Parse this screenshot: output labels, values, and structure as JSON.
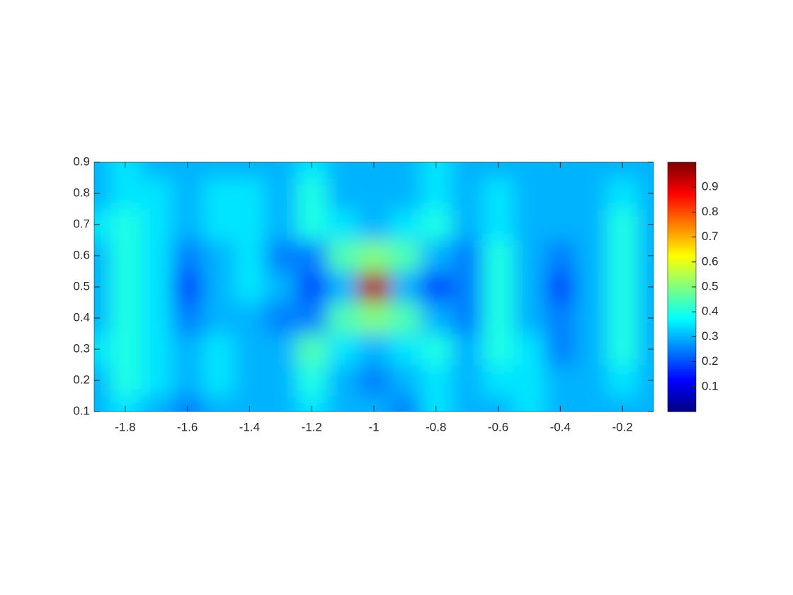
{
  "chart_data": {
    "type": "heatmap",
    "colormap": "jet",
    "x": [
      -1.9,
      -1.8,
      -1.7,
      -1.6,
      -1.5,
      -1.4,
      -1.3,
      -1.2,
      -1.1,
      -1,
      -0.9,
      -0.8,
      -0.7,
      -0.6,
      -0.5,
      -0.4,
      -0.3,
      -0.2,
      -0.1
    ],
    "y": [
      0.1,
      0.2,
      0.3,
      0.4,
      0.5,
      0.6,
      0.7,
      0.8,
      0.9
    ],
    "z": [
      [
        0.3,
        0.35,
        0.3,
        0.25,
        0.3,
        0.3,
        0.3,
        0.35,
        0.3,
        0.3,
        0.25,
        0.35,
        0.3,
        0.3,
        0.35,
        0.3,
        0.3,
        0.3,
        0.3
      ],
      [
        0.3,
        0.4,
        0.35,
        0.3,
        0.35,
        0.3,
        0.3,
        0.4,
        0.3,
        0.25,
        0.3,
        0.35,
        0.3,
        0.35,
        0.35,
        0.3,
        0.3,
        0.35,
        0.3
      ],
      [
        0.35,
        0.4,
        0.35,
        0.3,
        0.35,
        0.3,
        0.3,
        0.45,
        0.35,
        0.3,
        0.35,
        0.4,
        0.3,
        0.4,
        0.35,
        0.25,
        0.3,
        0.4,
        0.3
      ],
      [
        0.3,
        0.4,
        0.35,
        0.25,
        0.3,
        0.3,
        0.25,
        0.25,
        0.45,
        0.5,
        0.45,
        0.3,
        0.25,
        0.4,
        0.3,
        0.25,
        0.3,
        0.4,
        0.3
      ],
      [
        0.3,
        0.4,
        0.35,
        0.2,
        0.3,
        0.35,
        0.3,
        0.2,
        0.3,
        0.95,
        0.3,
        0.2,
        0.25,
        0.4,
        0.3,
        0.2,
        0.3,
        0.4,
        0.3
      ],
      [
        0.3,
        0.4,
        0.35,
        0.25,
        0.3,
        0.35,
        0.25,
        0.25,
        0.45,
        0.5,
        0.45,
        0.3,
        0.25,
        0.4,
        0.3,
        0.25,
        0.3,
        0.4,
        0.3
      ],
      [
        0.35,
        0.4,
        0.35,
        0.3,
        0.35,
        0.35,
        0.3,
        0.4,
        0.35,
        0.3,
        0.35,
        0.4,
        0.3,
        0.35,
        0.3,
        0.3,
        0.3,
        0.4,
        0.3
      ],
      [
        0.3,
        0.35,
        0.35,
        0.3,
        0.35,
        0.35,
        0.3,
        0.4,
        0.3,
        0.3,
        0.3,
        0.35,
        0.3,
        0.35,
        0.3,
        0.3,
        0.3,
        0.35,
        0.3
      ],
      [
        0.3,
        0.35,
        0.3,
        0.3,
        0.3,
        0.3,
        0.3,
        0.35,
        0.3,
        0.3,
        0.3,
        0.35,
        0.3,
        0.3,
        0.3,
        0.3,
        0.3,
        0.3,
        0.3
      ]
    ],
    "xlim": [
      -1.9,
      -0.1
    ],
    "ylim": [
      0.1,
      0.9
    ],
    "xticks": [
      -1.8,
      -1.6,
      -1.4,
      -1.2,
      -1,
      -0.8,
      -0.6,
      -0.4,
      -0.2
    ],
    "yticks": [
      0.1,
      0.2,
      0.3,
      0.4,
      0.5,
      0.6,
      0.7,
      0.8,
      0.9
    ],
    "clim": [
      0,
      1
    ],
    "colorbar_ticks": [
      0.1,
      0.2,
      0.3,
      0.4,
      0.5,
      0.6,
      0.7,
      0.8,
      0.9
    ]
  }
}
